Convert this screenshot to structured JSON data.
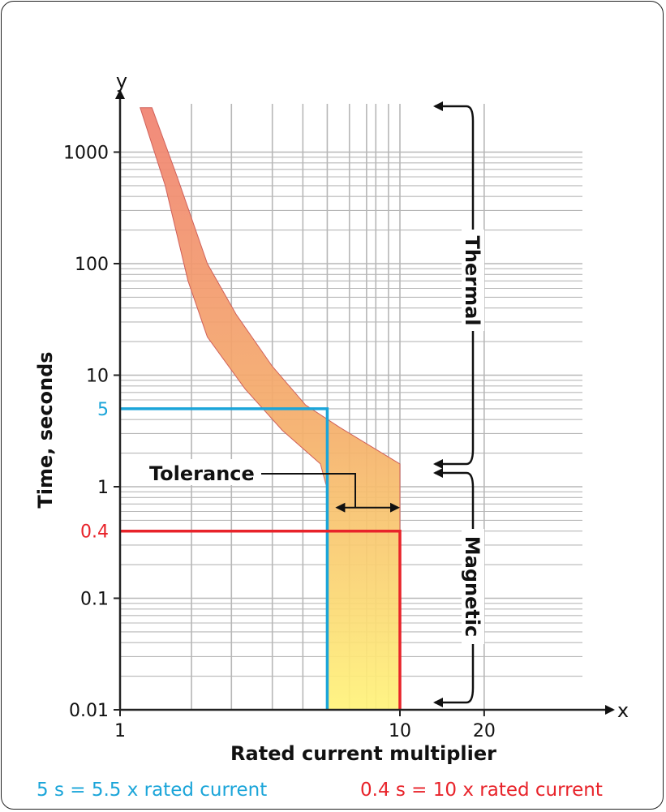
{
  "chart_data": {
    "type": "area",
    "x_scale": "log",
    "y_scale": "log",
    "grid": true,
    "xlabel": "Rated current multiplier",
    "ylabel": "Time, seconds",
    "x_axis_letter": "x",
    "y_axis_letter": "y",
    "xlim": [
      1,
      25
    ],
    "ylim": [
      0.01,
      2500
    ],
    "x_ticks": [
      {
        "value": 1,
        "label": "1"
      },
      {
        "value": 10,
        "label": "10"
      },
      {
        "value": 20,
        "label": "20"
      }
    ],
    "y_ticks": [
      {
        "value": 1000,
        "label": "1000"
      },
      {
        "value": 100,
        "label": "100"
      },
      {
        "value": 10,
        "label": "10"
      },
      {
        "value": 1,
        "label": "1"
      },
      {
        "value": 0.1,
        "label": "0.1"
      },
      {
        "value": 0.01,
        "label": "0.01"
      }
    ],
    "band_upper": [
      {
        "x": 1.3,
        "y": 2500
      },
      {
        "x": 1.6,
        "y": 600
      },
      {
        "x": 2.05,
        "y": 100
      },
      {
        "x": 2.6,
        "y": 35
      },
      {
        "x": 3.5,
        "y": 12
      },
      {
        "x": 4.6,
        "y": 5.4
      },
      {
        "x": 6.1,
        "y": 3.4
      },
      {
        "x": 10,
        "y": 1.6
      }
    ],
    "band_lower": [
      {
        "x": 1.18,
        "y": 2500
      },
      {
        "x": 1.45,
        "y": 500
      },
      {
        "x": 1.75,
        "y": 70
      },
      {
        "x": 2.05,
        "y": 22
      },
      {
        "x": 2.8,
        "y": 7.5
      },
      {
        "x": 3.8,
        "y": 3.2
      },
      {
        "x": 5.2,
        "y": 1.6
      },
      {
        "x": 5.5,
        "y": 0.95
      }
    ],
    "magnetic_band": {
      "x_min": 5.5,
      "x_max": 10,
      "y_min": 0.01,
      "y_max": 0.95
    },
    "markers": [
      {
        "name": "5 s",
        "x": 5.5,
        "y": 5,
        "y_label": "5",
        "color": "#1ba5d9"
      },
      {
        "name": "0.4 s",
        "x": 10,
        "y": 0.4,
        "y_label": "0.4",
        "color": "#e8232a"
      }
    ],
    "annotations": {
      "tolerance": "Tolerance",
      "thermal": "Thermal",
      "magnetic": "Magnetic"
    },
    "footnotes": [
      {
        "text": "5 s = 5.5 x rated current",
        "color": "#1ba5d9"
      },
      {
        "text": "0.4 s = 10 x rated current",
        "color": "#e8232a"
      }
    ]
  },
  "colors": {
    "grid": "#b7b7b7",
    "axis": "#222222",
    "band_top": "#f08070",
    "band_mid": "#f5b06a",
    "band_bottom": "#fff37a",
    "band_stroke": "#d0605a"
  }
}
